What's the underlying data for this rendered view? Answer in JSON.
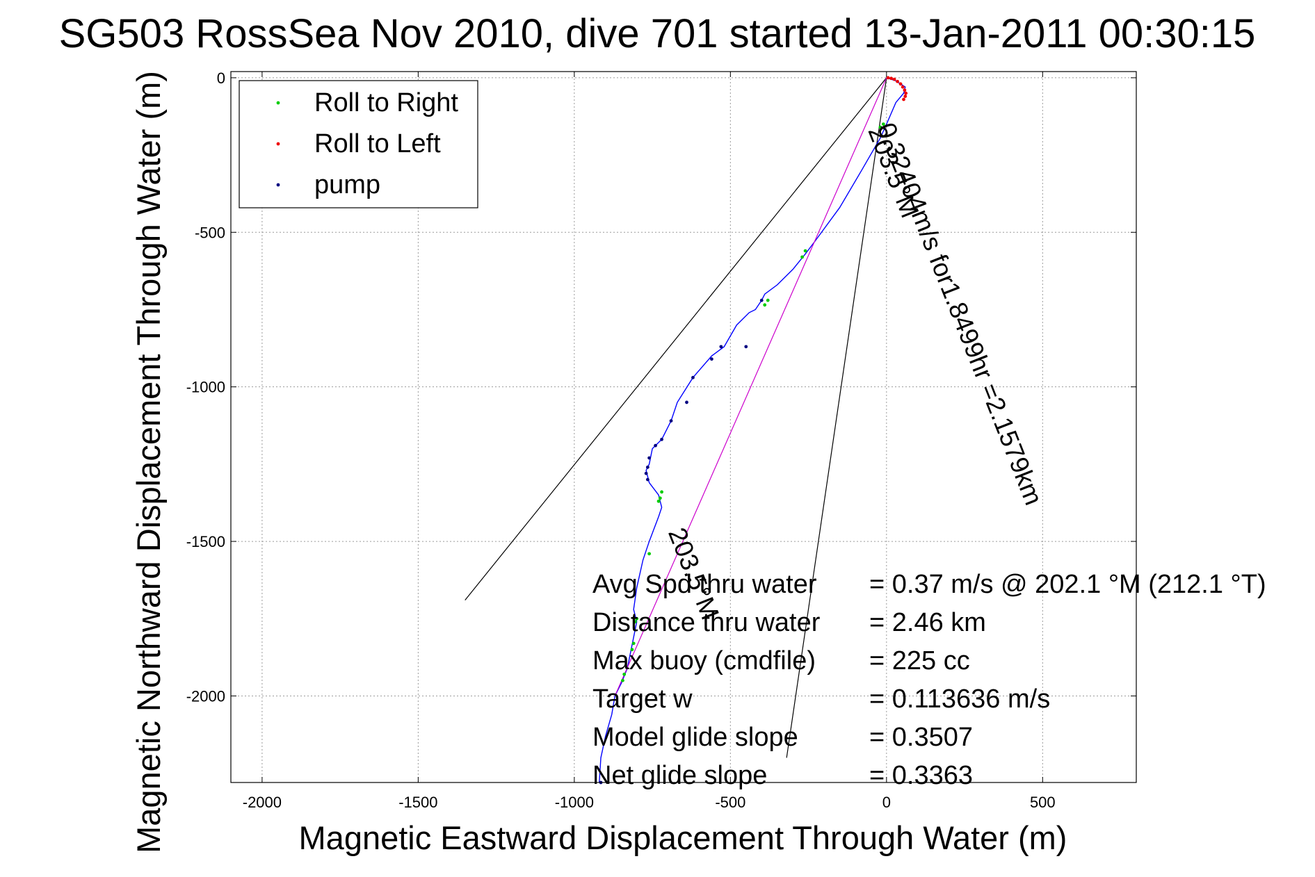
{
  "chart_data": {
    "type": "scatter",
    "title": "SG503 RossSea Nov 2010, dive 701 started 13-Jan-2011 00:30:15",
    "xlabel": "Magnetic Eastward Displacement Through Water (m)",
    "ylabel": "Magnetic Northward Displacement Through Water (m)",
    "xlim": [
      -2100,
      800
    ],
    "ylim": [
      -2280,
      20
    ],
    "grid": true,
    "x_ticks": [
      -2000,
      -1500,
      -1000,
      -500,
      0,
      500
    ],
    "y_ticks": [
      0,
      -500,
      -1000,
      -1500,
      -2000
    ],
    "legend": {
      "placement": "top-left",
      "entries": [
        {
          "label": "Roll to Right",
          "color": "#00cc00"
        },
        {
          "label": "Roll to Left",
          "color": "#ee0000"
        },
        {
          "label": "pump",
          "color": "#000080"
        }
      ]
    },
    "series": [
      {
        "kind": "track",
        "color": "#0000ff",
        "points": [
          [
            0,
            0
          ],
          [
            30,
            -10
          ],
          [
            60,
            -30
          ],
          [
            55,
            -50
          ],
          [
            30,
            -80
          ],
          [
            0,
            -150
          ],
          [
            -20,
            -195
          ],
          [
            -80,
            -300
          ],
          [
            -150,
            -420
          ],
          [
            -230,
            -530
          ],
          [
            -260,
            -570
          ],
          [
            -300,
            -620
          ],
          [
            -350,
            -670
          ],
          [
            -390,
            -700
          ],
          [
            -400,
            -720
          ],
          [
            -420,
            -750
          ],
          [
            -440,
            -760
          ],
          [
            -480,
            -800
          ],
          [
            -520,
            -870
          ],
          [
            -560,
            -900
          ],
          [
            -620,
            -970
          ],
          [
            -670,
            -1050
          ],
          [
            -690,
            -1110
          ],
          [
            -720,
            -1170
          ],
          [
            -750,
            -1200
          ],
          [
            -760,
            -1250
          ],
          [
            -770,
            -1270
          ],
          [
            -760,
            -1310
          ],
          [
            -730,
            -1350
          ],
          [
            -720,
            -1390
          ],
          [
            -730,
            -1420
          ],
          [
            -760,
            -1500
          ],
          [
            -780,
            -1560
          ],
          [
            -800,
            -1650
          ],
          [
            -810,
            -1720
          ],
          [
            -800,
            -1760
          ],
          [
            -810,
            -1810
          ],
          [
            -820,
            -1860
          ],
          [
            -830,
            -1910
          ],
          [
            -850,
            -1960
          ],
          [
            -870,
            -2000
          ],
          [
            -880,
            -2060
          ],
          [
            -900,
            -2130
          ],
          [
            -915,
            -2200
          ],
          [
            -920,
            -2280
          ]
        ]
      },
      {
        "kind": "course",
        "color": "#cc00cc",
        "points": [
          [
            0,
            0
          ],
          [
            -870,
            -2000
          ]
        ]
      },
      {
        "name": "Roll to Right",
        "color": "#00cc00",
        "points": [
          [
            -10,
            -150
          ],
          [
            -20,
            -160
          ],
          [
            -260,
            -560
          ],
          [
            -270,
            -580
          ],
          [
            -380,
            -720
          ],
          [
            -390,
            -735
          ],
          [
            -720,
            -1340
          ],
          [
            -725,
            -1360
          ],
          [
            -730,
            -1370
          ],
          [
            -760,
            -1540
          ],
          [
            -800,
            -1750
          ],
          [
            -805,
            -1760
          ],
          [
            -810,
            -1830
          ],
          [
            -815,
            -1850
          ],
          [
            -840,
            -1930
          ],
          [
            -845,
            -1950
          ]
        ]
      },
      {
        "name": "Roll to Left",
        "color": "#ee0000",
        "points": [
          [
            5,
            0
          ],
          [
            15,
            -2
          ],
          [
            25,
            -5
          ],
          [
            35,
            -12
          ],
          [
            45,
            -20
          ],
          [
            52,
            -30
          ],
          [
            58,
            -40
          ],
          [
            62,
            -50
          ],
          [
            60,
            -60
          ],
          [
            55,
            -70
          ]
        ]
      },
      {
        "name": "pump",
        "color": "#000080",
        "points": [
          [
            -400,
            -720
          ],
          [
            -450,
            -870
          ],
          [
            -530,
            -870
          ],
          [
            -560,
            -910
          ],
          [
            -620,
            -970
          ],
          [
            -640,
            -1050
          ],
          [
            -690,
            -1110
          ],
          [
            -720,
            -1170
          ],
          [
            -740,
            -1190
          ],
          [
            -760,
            -1230
          ],
          [
            -765,
            -1260
          ],
          [
            -770,
            -1280
          ],
          [
            -765,
            -1300
          ],
          [
            -915,
            -2280
          ]
        ]
      }
    ],
    "reference_lines": [
      {
        "from": [
          0,
          0
        ],
        "to": [
          -1350,
          -1690
        ]
      },
      {
        "from": [
          0,
          0
        ],
        "to": [
          -320,
          -2200
        ]
      }
    ],
    "annotations": [
      {
        "text": "0.32404m/s for1.8499hr =2.1579km",
        "at": [
          -30,
          -160
        ],
        "rotation": 68.5
      },
      {
        "text": "203.5°M",
        "at": [
          -60,
          -170
        ],
        "rotation": 68.5
      },
      {
        "text": "203.5°M",
        "at": [
          -700,
          -1470
        ],
        "rotation": 68.5
      }
    ],
    "stats": [
      {
        "label": "Avg Spd thru water",
        "value": "=  0.37 m/s @ 202.1 °M (212.1 °T)"
      },
      {
        "label": "Distance thru water",
        "value": "=  2.46 km"
      },
      {
        "label": "Max buoy (cmdfile)",
        "value": "= 225 cc"
      },
      {
        "label": "Target w",
        "value": "= 0.113636 m/s"
      },
      {
        "label": "Model glide slope",
        "value": "= 0.3507"
      },
      {
        "label": "Net glide slope",
        "value": "= 0.3363"
      }
    ]
  }
}
